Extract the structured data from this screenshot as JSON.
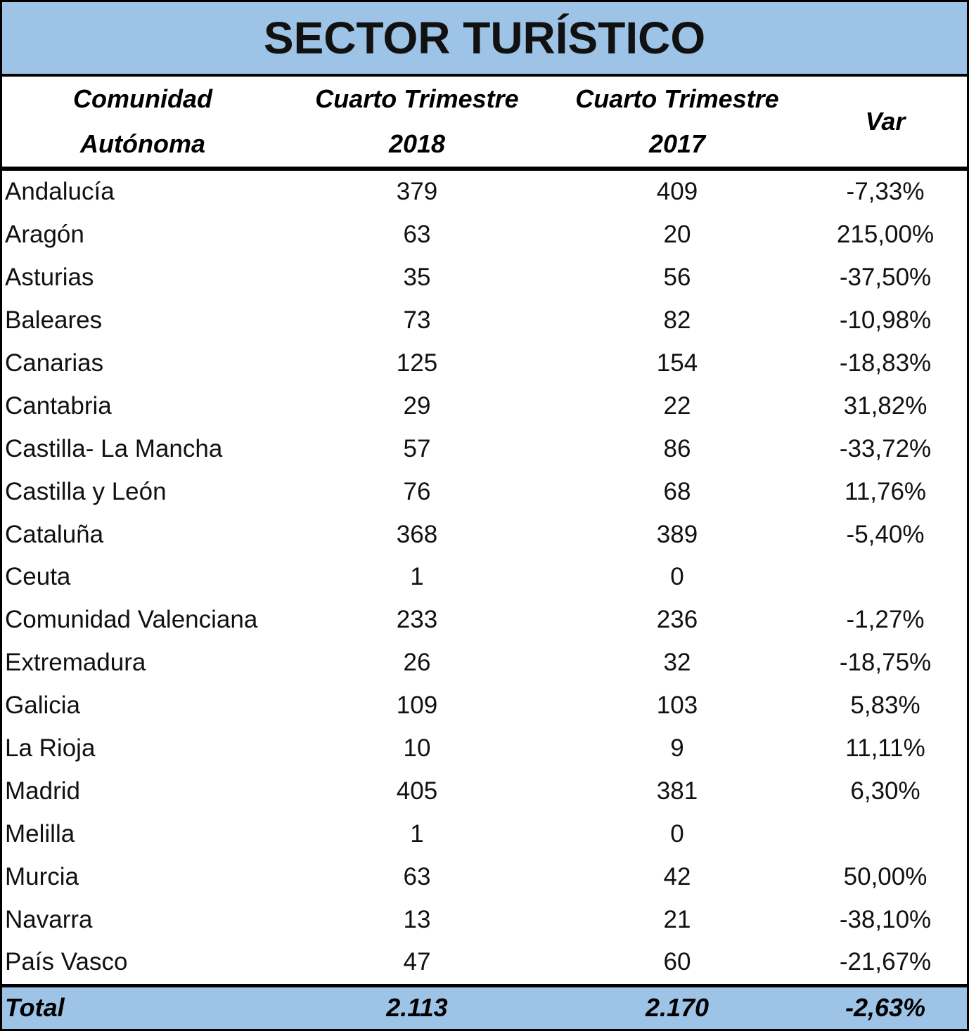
{
  "title": "SECTOR TURÍSTICO",
  "header": [
    [
      "Comunidad",
      "Autónoma"
    ],
    [
      "Cuarto Trimestre",
      "2018"
    ],
    [
      "Cuarto Trimestre",
      "2017"
    ],
    [
      "Var"
    ]
  ],
  "table": {
    "rows": [
      [
        "Andalucía",
        "379",
        "409",
        "-7,33%"
      ],
      [
        "Aragón",
        "63",
        "20",
        "215,00%"
      ],
      [
        "Asturias",
        "35",
        "56",
        "-37,50%"
      ],
      [
        "Baleares",
        "73",
        "82",
        "-10,98%"
      ],
      [
        "Canarias",
        "125",
        "154",
        "-18,83%"
      ],
      [
        "Cantabria",
        "29",
        "22",
        "31,82%"
      ],
      [
        "Castilla- La Mancha",
        "57",
        "86",
        "-33,72%"
      ],
      [
        "Castilla y León",
        "76",
        "68",
        "11,76%"
      ],
      [
        "Cataluña",
        "368",
        "389",
        "-5,40%"
      ],
      [
        "Ceuta",
        "1",
        "0",
        null
      ],
      [
        "Comunidad Valenciana",
        "233",
        "236",
        "-1,27%"
      ],
      [
        "Extremadura",
        "26",
        "32",
        "-18,75%"
      ],
      [
        "Galicia",
        "109",
        "103",
        "5,83%"
      ],
      [
        "La Rioja",
        "10",
        "9",
        "11,11%"
      ],
      [
        "Madrid",
        "405",
        "381",
        "6,30%"
      ],
      [
        "Melilla",
        "1",
        "0",
        null
      ],
      [
        "Murcia",
        "63",
        "42",
        "50,00%"
      ],
      [
        "Navarra",
        "13",
        "21",
        "-38,10%"
      ],
      [
        "País Vasco",
        "47",
        "60",
        "-21,67%"
      ]
    ]
  },
  "total": [
    "Total",
    "2.113",
    "2.170",
    "-2,63%"
  ]
}
